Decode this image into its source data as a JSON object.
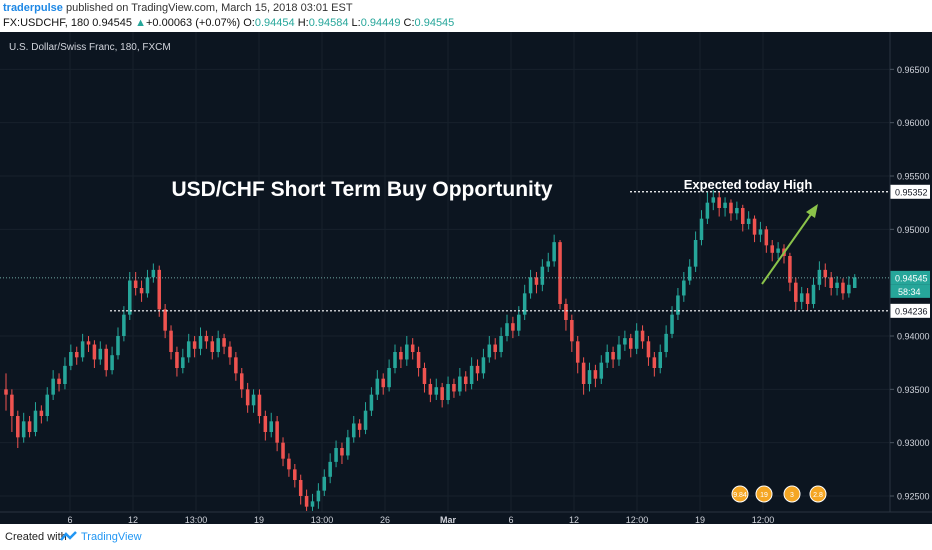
{
  "header": {
    "author": "traderpulse",
    "published": " published on TradingView.com, March 15, 2018 03:01 EST",
    "symbol": "FX:USDCHF, 180",
    "last": "0.94545",
    "change": "+0.00063 (+0.07%)",
    "o_label": "O:",
    "o_val": "0.94454",
    "h_label": "H:",
    "h_val": "0.94584",
    "l_label": "L:",
    "l_val": "0.94449",
    "c_label": "C:",
    "c_val": "0.94545"
  },
  "footer": {
    "created": "Created with",
    "brand": "TradingView"
  },
  "colors": {
    "bg": "#0c1520",
    "up": "#26a69a",
    "down": "#ef5350",
    "text": "#d1d4dc",
    "arrow": "#8bc34a"
  },
  "chart_data": {
    "type": "candlestick",
    "instrument_label": "U.S. Dollar/Swiss Franc, 180, FXCM",
    "title": "USD/CHF Short Term Buy Opportunity",
    "annotation": "Expected today High",
    "y_ticks": [
      "0.96500",
      "0.96000",
      "0.95500",
      "0.95000",
      "0.94000",
      "0.93500",
      "0.93000",
      "0.92500"
    ],
    "y_tick_values": [
      0.965,
      0.96,
      0.955,
      0.95,
      0.94,
      0.935,
      0.93,
      0.925
    ],
    "x_ticks": [
      "6",
      "12",
      "13:00",
      "19",
      "13:00",
      "26",
      "Mar",
      "6",
      "12",
      "12:00",
      "19",
      "12:00"
    ],
    "ylim": [
      0.9235,
      0.9685
    ],
    "levels": [
      {
        "label": "0.95352",
        "value": 0.95352,
        "style": "dotted"
      },
      {
        "label": "0.94545",
        "value": 0.94545,
        "style": "last"
      },
      {
        "label": "0.94236",
        "value": 0.94236,
        "style": "dotted"
      }
    ],
    "countdown": "58:34",
    "event_flags": [
      "9.84",
      "19",
      "3",
      "2.8"
    ],
    "candles": [
      [
        0.935,
        0.9345,
        0.9365,
        0.933
      ],
      [
        0.9345,
        0.9325,
        0.935,
        0.931
      ],
      [
        0.9325,
        0.9305,
        0.933,
        0.9295
      ],
      [
        0.9305,
        0.932,
        0.9328,
        0.93
      ],
      [
        0.932,
        0.931,
        0.9325,
        0.9305
      ],
      [
        0.931,
        0.933,
        0.9338,
        0.9306
      ],
      [
        0.933,
        0.9325,
        0.9335,
        0.9318
      ],
      [
        0.9325,
        0.9345,
        0.9352,
        0.932
      ],
      [
        0.9345,
        0.936,
        0.9368,
        0.934
      ],
      [
        0.936,
        0.9355,
        0.9365,
        0.9348
      ],
      [
        0.9355,
        0.9372,
        0.938,
        0.935
      ],
      [
        0.9372,
        0.9385,
        0.9392,
        0.9368
      ],
      [
        0.9385,
        0.938,
        0.939,
        0.9373
      ],
      [
        0.938,
        0.9395,
        0.9402,
        0.9376
      ],
      [
        0.9395,
        0.9392,
        0.94,
        0.9385
      ],
      [
        0.9392,
        0.9378,
        0.9396,
        0.937
      ],
      [
        0.9378,
        0.9388,
        0.9395,
        0.9373
      ],
      [
        0.9388,
        0.9368,
        0.9392,
        0.9362
      ],
      [
        0.9368,
        0.9382,
        0.939,
        0.9364
      ],
      [
        0.9382,
        0.94,
        0.9408,
        0.9378
      ],
      [
        0.94,
        0.942,
        0.9428,
        0.9395
      ],
      [
        0.942,
        0.9452,
        0.946,
        0.9415
      ],
      [
        0.9452,
        0.9445,
        0.946,
        0.9438
      ],
      [
        0.9445,
        0.944,
        0.9452,
        0.9432
      ],
      [
        0.944,
        0.9455,
        0.9462,
        0.9436
      ],
      [
        0.9455,
        0.9462,
        0.9468,
        0.945
      ],
      [
        0.9462,
        0.9425,
        0.9466,
        0.9418
      ],
      [
        0.9425,
        0.9405,
        0.943,
        0.9398
      ],
      [
        0.9405,
        0.9385,
        0.941,
        0.9378
      ],
      [
        0.9385,
        0.937,
        0.939,
        0.9362
      ],
      [
        0.937,
        0.938,
        0.9388,
        0.9365
      ],
      [
        0.938,
        0.9395,
        0.9402,
        0.9375
      ],
      [
        0.9395,
        0.9388,
        0.94,
        0.938
      ],
      [
        0.9388,
        0.94,
        0.9408,
        0.9382
      ],
      [
        0.94,
        0.9395,
        0.9405,
        0.9388
      ],
      [
        0.9395,
        0.9385,
        0.94,
        0.9378
      ],
      [
        0.9385,
        0.9398,
        0.9405,
        0.938
      ],
      [
        0.9398,
        0.939,
        0.9402,
        0.9383
      ],
      [
        0.939,
        0.938,
        0.9395,
        0.9373
      ],
      [
        0.938,
        0.9365,
        0.9385,
        0.9358
      ],
      [
        0.9365,
        0.935,
        0.937,
        0.9342
      ],
      [
        0.935,
        0.9335,
        0.9356,
        0.9328
      ],
      [
        0.9335,
        0.9345,
        0.935,
        0.9328
      ],
      [
        0.9345,
        0.9325,
        0.935,
        0.9318
      ],
      [
        0.9325,
        0.931,
        0.933,
        0.9302
      ],
      [
        0.931,
        0.932,
        0.9328,
        0.9305
      ],
      [
        0.932,
        0.93,
        0.9325,
        0.9292
      ],
      [
        0.93,
        0.9285,
        0.9305,
        0.9278
      ],
      [
        0.9285,
        0.9275,
        0.929,
        0.9268
      ],
      [
        0.9275,
        0.9265,
        0.928,
        0.9258
      ],
      [
        0.9265,
        0.925,
        0.927,
        0.9242
      ],
      [
        0.925,
        0.924,
        0.9256,
        0.9236
      ],
      [
        0.924,
        0.9245,
        0.9252,
        0.9236
      ],
      [
        0.9245,
        0.9255,
        0.9262,
        0.9238
      ],
      [
        0.9255,
        0.9268,
        0.9275,
        0.925
      ],
      [
        0.9268,
        0.9282,
        0.929,
        0.9262
      ],
      [
        0.9282,
        0.9295,
        0.9302,
        0.9277
      ],
      [
        0.9295,
        0.9288,
        0.93,
        0.928
      ],
      [
        0.9288,
        0.9305,
        0.9312,
        0.9284
      ],
      [
        0.9305,
        0.9318,
        0.9325,
        0.93
      ],
      [
        0.9318,
        0.9312,
        0.9322,
        0.9305
      ],
      [
        0.9312,
        0.933,
        0.9338,
        0.9308
      ],
      [
        0.933,
        0.9345,
        0.9352,
        0.9325
      ],
      [
        0.9345,
        0.936,
        0.9368,
        0.934
      ],
      [
        0.936,
        0.9352,
        0.9365,
        0.9345
      ],
      [
        0.9352,
        0.937,
        0.9378,
        0.9348
      ],
      [
        0.937,
        0.9385,
        0.9392,
        0.9365
      ],
      [
        0.9385,
        0.9378,
        0.939,
        0.937
      ],
      [
        0.9378,
        0.9392,
        0.94,
        0.9372
      ],
      [
        0.9392,
        0.9385,
        0.9398,
        0.9378
      ],
      [
        0.9385,
        0.937,
        0.939,
        0.9362
      ],
      [
        0.937,
        0.9355,
        0.9375,
        0.9347
      ],
      [
        0.9355,
        0.9345,
        0.936,
        0.9338
      ],
      [
        0.9345,
        0.9352,
        0.936,
        0.934
      ],
      [
        0.9352,
        0.934,
        0.9356,
        0.9333
      ],
      [
        0.934,
        0.9355,
        0.9362,
        0.9336
      ],
      [
        0.9355,
        0.9348,
        0.936,
        0.9342
      ],
      [
        0.9348,
        0.9362,
        0.937,
        0.9344
      ],
      [
        0.9362,
        0.9355,
        0.9367,
        0.9348
      ],
      [
        0.9355,
        0.9372,
        0.938,
        0.935
      ],
      [
        0.9372,
        0.9365,
        0.9378,
        0.9358
      ],
      [
        0.9365,
        0.938,
        0.9388,
        0.936
      ],
      [
        0.938,
        0.9392,
        0.94,
        0.9375
      ],
      [
        0.9392,
        0.9385,
        0.9398,
        0.9378
      ],
      [
        0.9385,
        0.94,
        0.9408,
        0.938
      ],
      [
        0.94,
        0.9412,
        0.942,
        0.9395
      ],
      [
        0.9412,
        0.9405,
        0.9418,
        0.9398
      ],
      [
        0.9405,
        0.942,
        0.9428,
        0.94
      ],
      [
        0.942,
        0.944,
        0.9448,
        0.9415
      ],
      [
        0.944,
        0.9455,
        0.9462,
        0.9435
      ],
      [
        0.9455,
        0.9448,
        0.946,
        0.944
      ],
      [
        0.9448,
        0.9465,
        0.9472,
        0.9442
      ],
      [
        0.9465,
        0.947,
        0.9478,
        0.946
      ],
      [
        0.947,
        0.9488,
        0.9495,
        0.9465
      ],
      [
        0.9488,
        0.943,
        0.949,
        0.9425
      ],
      [
        0.943,
        0.9415,
        0.9435,
        0.9405
      ],
      [
        0.9415,
        0.9395,
        0.942,
        0.9385
      ],
      [
        0.9395,
        0.9375,
        0.94,
        0.9365
      ],
      [
        0.9375,
        0.9355,
        0.938,
        0.9345
      ],
      [
        0.9355,
        0.9368,
        0.9375,
        0.9348
      ],
      [
        0.9368,
        0.936,
        0.9373,
        0.9352
      ],
      [
        0.936,
        0.9375,
        0.9382,
        0.9355
      ],
      [
        0.9375,
        0.9385,
        0.9392,
        0.937
      ],
      [
        0.9385,
        0.9378,
        0.939,
        0.937
      ],
      [
        0.9378,
        0.9392,
        0.94,
        0.9372
      ],
      [
        0.9392,
        0.9398,
        0.9405,
        0.9386
      ],
      [
        0.9398,
        0.9388,
        0.9402,
        0.938
      ],
      [
        0.9388,
        0.9405,
        0.9412,
        0.9383
      ],
      [
        0.9405,
        0.9395,
        0.941,
        0.9388
      ],
      [
        0.9395,
        0.938,
        0.94,
        0.9372
      ],
      [
        0.938,
        0.937,
        0.9385,
        0.9362
      ],
      [
        0.937,
        0.9385,
        0.9392,
        0.9365
      ],
      [
        0.9385,
        0.9402,
        0.941,
        0.938
      ],
      [
        0.9402,
        0.942,
        0.9428,
        0.9398
      ],
      [
        0.942,
        0.9438,
        0.9445,
        0.9415
      ],
      [
        0.9438,
        0.9452,
        0.946,
        0.9432
      ],
      [
        0.9452,
        0.9465,
        0.9472,
        0.9448
      ],
      [
        0.9465,
        0.949,
        0.9498,
        0.946
      ],
      [
        0.949,
        0.951,
        0.9518,
        0.9485
      ],
      [
        0.951,
        0.9525,
        0.9535,
        0.9505
      ],
      [
        0.9525,
        0.953,
        0.9537,
        0.9518
      ],
      [
        0.953,
        0.952,
        0.9535,
        0.9512
      ],
      [
        0.952,
        0.9525,
        0.953,
        0.9512
      ],
      [
        0.9525,
        0.9515,
        0.9528,
        0.9508
      ],
      [
        0.9515,
        0.952,
        0.9526,
        0.9509
      ],
      [
        0.952,
        0.9505,
        0.9523,
        0.9498
      ],
      [
        0.9505,
        0.951,
        0.9517,
        0.95
      ],
      [
        0.951,
        0.9495,
        0.9513,
        0.9488
      ],
      [
        0.9495,
        0.95,
        0.9507,
        0.9488
      ],
      [
        0.95,
        0.9485,
        0.9503,
        0.9478
      ],
      [
        0.9485,
        0.9478,
        0.949,
        0.947
      ],
      [
        0.9478,
        0.9482,
        0.9488,
        0.9472
      ],
      [
        0.9482,
        0.9475,
        0.9486,
        0.9468
      ],
      [
        0.9475,
        0.945,
        0.9478,
        0.9442
      ],
      [
        0.945,
        0.9432,
        0.9455,
        0.9424
      ],
      [
        0.9432,
        0.944,
        0.9446,
        0.9425
      ],
      [
        0.944,
        0.943,
        0.9445,
        0.9424
      ],
      [
        0.943,
        0.9448,
        0.9455,
        0.9426
      ],
      [
        0.9448,
        0.9462,
        0.947,
        0.9443
      ],
      [
        0.9462,
        0.9455,
        0.9468,
        0.9446
      ],
      [
        0.9455,
        0.9445,
        0.946,
        0.9438
      ],
      [
        0.9445,
        0.945,
        0.9456,
        0.9438
      ],
      [
        0.945,
        0.944,
        0.9454,
        0.9434
      ],
      [
        0.944,
        0.9448,
        0.9456,
        0.9436
      ],
      [
        0.9445,
        0.9455,
        0.9458,
        0.9445
      ]
    ]
  }
}
